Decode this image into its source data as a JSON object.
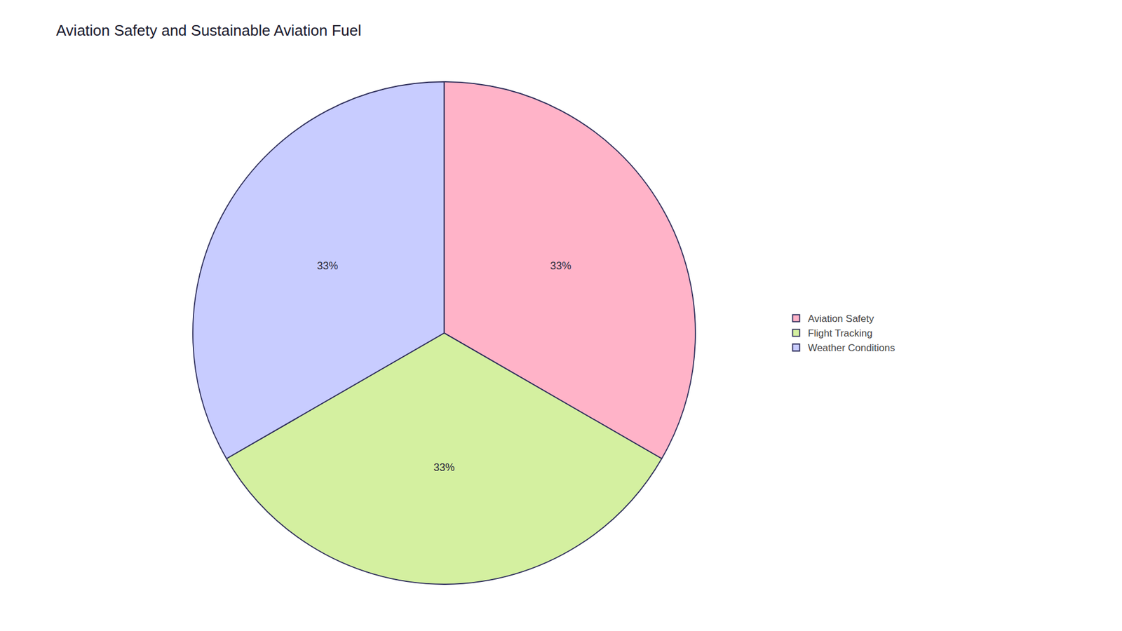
{
  "chart_data": {
    "type": "pie",
    "title": "Aviation Safety and Sustainable Aviation Fuel",
    "categories": [
      "Aviation Safety",
      "Flight Tracking",
      "Weather Conditions"
    ],
    "values": [
      33,
      33,
      33
    ],
    "value_labels": [
      "33%",
      "33%",
      "33%"
    ],
    "colors": [
      "#FFB3C8",
      "#D4F0A0",
      "#C8CCFF"
    ],
    "data_labels": true,
    "legend": "right"
  }
}
